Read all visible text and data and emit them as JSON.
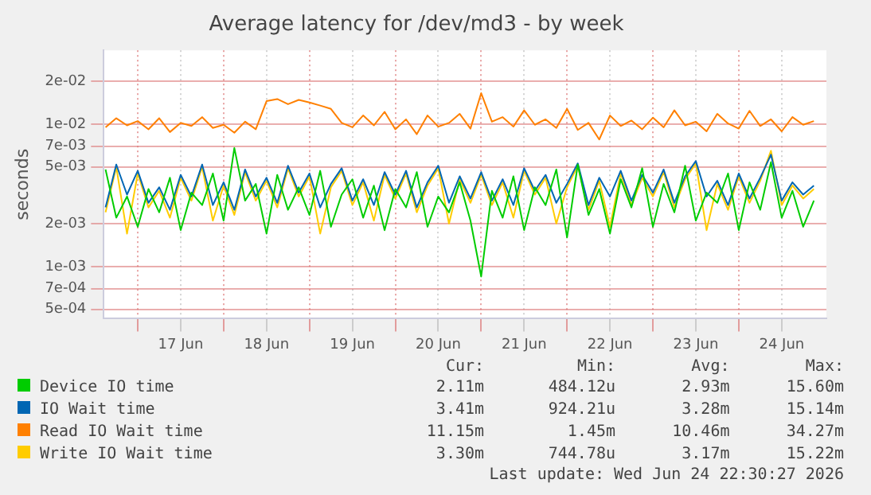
{
  "chart_data": {
    "type": "line",
    "title": "Average latency for /dev/md3 - by week",
    "ylabel": "seconds",
    "log": true,
    "grid": true,
    "legend": "bottom",
    "marker": "none",
    "line_style": "solid",
    "x": [
      "2026-06-16T15:00",
      "2026-06-16T18:00",
      "2026-06-16T21:00",
      "2026-06-17T00:00",
      "2026-06-17T03:00",
      "2026-06-17T06:00",
      "2026-06-17T09:00",
      "2026-06-17T12:00",
      "2026-06-17T15:00",
      "2026-06-17T18:00",
      "2026-06-17T21:00",
      "2026-06-18T00:00",
      "2026-06-18T03:00",
      "2026-06-18T06:00",
      "2026-06-18T09:00",
      "2026-06-18T12:00",
      "2026-06-18T15:00",
      "2026-06-18T18:00",
      "2026-06-18T21:00",
      "2026-06-19T00:00",
      "2026-06-19T03:00",
      "2026-06-19T06:00",
      "2026-06-19T09:00",
      "2026-06-19T12:00",
      "2026-06-19T15:00",
      "2026-06-19T18:00",
      "2026-06-19T21:00",
      "2026-06-20T00:00",
      "2026-06-20T03:00",
      "2026-06-20T06:00",
      "2026-06-20T09:00",
      "2026-06-20T12:00",
      "2026-06-20T15:00",
      "2026-06-20T18:00",
      "2026-06-20T21:00",
      "2026-06-21T00:00",
      "2026-06-21T03:00",
      "2026-06-21T06:00",
      "2026-06-21T09:00",
      "2026-06-21T12:00",
      "2026-06-21T15:00",
      "2026-06-21T18:00",
      "2026-06-21T21:00",
      "2026-06-22T00:00",
      "2026-06-22T03:00",
      "2026-06-22T06:00",
      "2026-06-22T09:00",
      "2026-06-22T12:00",
      "2026-06-22T15:00",
      "2026-06-22T18:00",
      "2026-06-22T21:00",
      "2026-06-23T00:00",
      "2026-06-23T03:00",
      "2026-06-23T06:00",
      "2026-06-23T09:00",
      "2026-06-23T12:00",
      "2026-06-23T15:00",
      "2026-06-23T18:00",
      "2026-06-23T21:00",
      "2026-06-24T00:00",
      "2026-06-24T03:00",
      "2026-06-24T06:00",
      "2026-06-24T09:00",
      "2026-06-24T12:00",
      "2026-06-24T15:00",
      "2026-06-24T18:00",
      "2026-06-24T21:00"
    ],
    "xlim": [
      "2026-06-16T14:30",
      "2026-06-25T00:30"
    ],
    "xticks": [
      {
        "value": "2026-06-17T00:00",
        "label": null
      },
      {
        "value": "2026-06-17T12:00",
        "label": "17 Jun"
      },
      {
        "value": "2026-06-18T00:00",
        "label": null
      },
      {
        "value": "2026-06-18T12:00",
        "label": "18 Jun"
      },
      {
        "value": "2026-06-19T00:00",
        "label": null
      },
      {
        "value": "2026-06-19T12:00",
        "label": "19 Jun"
      },
      {
        "value": "2026-06-20T00:00",
        "label": null
      },
      {
        "value": "2026-06-20T12:00",
        "label": "20 Jun"
      },
      {
        "value": "2026-06-21T00:00",
        "label": null
      },
      {
        "value": "2026-06-21T12:00",
        "label": "21 Jun"
      },
      {
        "value": "2026-06-22T00:00",
        "label": null
      },
      {
        "value": "2026-06-22T12:00",
        "label": "22 Jun"
      },
      {
        "value": "2026-06-23T00:00",
        "label": null
      },
      {
        "value": "2026-06-23T12:00",
        "label": "23 Jun"
      },
      {
        "value": "2026-06-24T00:00",
        "label": null
      },
      {
        "value": "2026-06-24T12:00",
        "label": "24 Jun"
      }
    ],
    "ylim": [
      0.00043,
      0.033
    ],
    "yticks": [
      {
        "value": 0.0005,
        "label": "5e-04"
      },
      {
        "value": 0.0007,
        "label": "7e-04"
      },
      {
        "value": 0.001,
        "label": "1e-03"
      },
      {
        "value": 0.002,
        "label": "2e-03"
      },
      {
        "value": 0.005,
        "label": "5e-03"
      },
      {
        "value": 0.007,
        "label": "7e-03"
      },
      {
        "value": 0.01,
        "label": "1e-02"
      },
      {
        "value": 0.02,
        "label": "2e-02"
      }
    ],
    "series": [
      {
        "name": "Device IO time",
        "color": "#00cc00",
        "values": [
          0.0048,
          0.0022,
          0.0031,
          0.0019,
          0.0035,
          0.0024,
          0.0042,
          0.0018,
          0.0033,
          0.0027,
          0.0045,
          0.0021,
          0.0068,
          0.0029,
          0.0038,
          0.0017,
          0.0044,
          0.0025,
          0.0036,
          0.0023,
          0.0047,
          0.0019,
          0.0032,
          0.0041,
          0.0022,
          0.0037,
          0.0018,
          0.0035,
          0.0026,
          0.0046,
          0.0019,
          0.0031,
          0.0024,
          0.0039,
          0.0021,
          0.00085,
          0.0034,
          0.0022,
          0.0043,
          0.0018,
          0.0036,
          0.0027,
          0.0048,
          0.0016,
          0.0052,
          0.0023,
          0.0035,
          0.0017,
          0.0041,
          0.0026,
          0.0049,
          0.0019,
          0.0038,
          0.0024,
          0.0051,
          0.0021,
          0.0033,
          0.0028,
          0.0045,
          0.0018,
          0.0039,
          0.0025,
          0.0054,
          0.0022,
          0.0034,
          0.0019,
          0.0029
        ]
      },
      {
        "name": "IO Wait time",
        "color": "#0066b3",
        "values": [
          0.0026,
          0.0052,
          0.0032,
          0.0047,
          0.0028,
          0.0036,
          0.0025,
          0.0044,
          0.0031,
          0.0052,
          0.0027,
          0.0039,
          0.0025,
          0.0048,
          0.0031,
          0.0042,
          0.0028,
          0.0051,
          0.0033,
          0.0045,
          0.0026,
          0.0038,
          0.0049,
          0.0029,
          0.0041,
          0.0027,
          0.0046,
          0.0032,
          0.0047,
          0.0026,
          0.0039,
          0.0051,
          0.0028,
          0.0043,
          0.003,
          0.0046,
          0.0029,
          0.0041,
          0.0027,
          0.0049,
          0.0034,
          0.0044,
          0.0028,
          0.0038,
          0.0053,
          0.0027,
          0.0042,
          0.0031,
          0.0047,
          0.0029,
          0.0044,
          0.0033,
          0.0048,
          0.0028,
          0.0043,
          0.0055,
          0.0031,
          0.004,
          0.0027,
          0.0045,
          0.003,
          0.0042,
          0.0061,
          0.0029,
          0.0039,
          0.0032,
          0.0037
        ]
      },
      {
        "name": "Read IO Wait time",
        "color": "#ff8000",
        "values": [
          0.0095,
          0.011,
          0.0098,
          0.0105,
          0.0092,
          0.011,
          0.0088,
          0.0102,
          0.0097,
          0.0112,
          0.0094,
          0.0099,
          0.0087,
          0.0104,
          0.0092,
          0.0145,
          0.015,
          0.0138,
          0.0148,
          0.0142,
          0.0135,
          0.0128,
          0.0102,
          0.0095,
          0.0115,
          0.0098,
          0.0122,
          0.0092,
          0.0108,
          0.0085,
          0.0115,
          0.0096,
          0.0102,
          0.0118,
          0.0093,
          0.0165,
          0.0104,
          0.0112,
          0.0096,
          0.0125,
          0.0099,
          0.0108,
          0.0094,
          0.0128,
          0.0091,
          0.0102,
          0.0078,
          0.0115,
          0.0097,
          0.0106,
          0.0092,
          0.0111,
          0.0095,
          0.0125,
          0.0098,
          0.0104,
          0.0089,
          0.0118,
          0.0101,
          0.0093,
          0.0124,
          0.0097,
          0.0108,
          0.0089,
          0.0112,
          0.0099,
          0.0105
        ]
      },
      {
        "name": "Write IO Wait time",
        "color": "#ffcc00",
        "values": [
          0.0024,
          0.005,
          0.0017,
          0.0045,
          0.0026,
          0.0034,
          0.0022,
          0.0042,
          0.0029,
          0.005,
          0.0021,
          0.0037,
          0.0023,
          0.0046,
          0.0029,
          0.004,
          0.0026,
          0.0049,
          0.0031,
          0.0043,
          0.0017,
          0.0036,
          0.0047,
          0.0027,
          0.0039,
          0.0021,
          0.0044,
          0.003,
          0.0045,
          0.0024,
          0.0037,
          0.0049,
          0.002,
          0.0041,
          0.0028,
          0.0044,
          0.0027,
          0.0039,
          0.0022,
          0.0047,
          0.0032,
          0.0042,
          0.002,
          0.0036,
          0.0051,
          0.0025,
          0.004,
          0.0019,
          0.0045,
          0.0027,
          0.0042,
          0.0031,
          0.0046,
          0.0026,
          0.0041,
          0.0053,
          0.0018,
          0.0038,
          0.0025,
          0.0043,
          0.0028,
          0.004,
          0.0065,
          0.0027,
          0.0037,
          0.003,
          0.0035
        ]
      }
    ],
    "annotations": [
      "Cur:",
      "Min:",
      "Avg:",
      "Max:",
      "2.11m",
      "484.12u",
      "2.93m",
      "15.60m",
      "3.41m",
      "924.21u",
      "3.28m",
      "15.14m",
      "11.15m",
      "1.45m",
      "10.46m",
      "34.27m",
      "3.30m",
      "744.78u",
      "3.17m",
      "15.22m",
      "Last update: Wed Jun 24 22:30:27 2026"
    ]
  }
}
